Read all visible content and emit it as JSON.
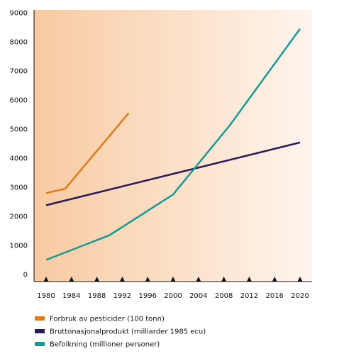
{
  "chart_data": {
    "type": "line",
    "xlim": [
      1980,
      2020
    ],
    "ylim": [
      0,
      9000
    ],
    "x_ticks": [
      "1980",
      "1984",
      "1988",
      "1992",
      "1996",
      "2000",
      "2004",
      "2008",
      "2012",
      "2016",
      "2020"
    ],
    "y_ticks": [
      "0",
      "1000",
      "2000",
      "3000",
      "4000",
      "5000",
      "6000",
      "7000",
      "8000",
      "9000"
    ],
    "background": {
      "gradient_from": "#f8caa2",
      "gradient_to": "#fff5ee"
    },
    "grid": false,
    "legend_position": "bottom-left",
    "series": [
      {
        "name": "Forbruk av pesticider (100 tonn)",
        "color": "#e07b18",
        "points": [
          [
            1980,
            2800
          ],
          [
            1983,
            2950
          ],
          [
            1993,
            5550
          ]
        ]
      },
      {
        "name": "Bruttonasjonalprodukt (milliarder 1985 ecu)",
        "color": "#2a1a55",
        "points": [
          [
            1980,
            2380
          ],
          [
            2020,
            4540
          ]
        ]
      },
      {
        "name": "Befolkning (millioner personer)",
        "color": "#179a94",
        "points": [
          [
            1980,
            500
          ],
          [
            1990,
            1350
          ],
          [
            2000,
            2750
          ],
          [
            2009,
            5150
          ],
          [
            2020,
            8450
          ]
        ]
      }
    ]
  }
}
